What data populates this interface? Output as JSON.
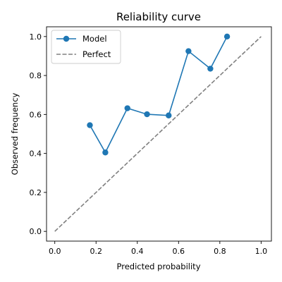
{
  "chart_data": {
    "type": "line",
    "title": "Reliability curve",
    "xlabel": "Predicted probability",
    "ylabel": "Observed frequency",
    "xlim": [
      -0.04,
      1.05
    ],
    "ylim": [
      -0.05,
      1.05
    ],
    "xticks": [
      "0.0",
      "0.2",
      "0.4",
      "0.6",
      "0.8",
      "1.0"
    ],
    "yticks": [
      "0.0",
      "0.2",
      "0.4",
      "0.6",
      "0.8",
      "1.0"
    ],
    "grid": false,
    "legend_position": "top-left",
    "series": [
      {
        "name": "Model",
        "color": "#1f77b4",
        "style": "solid",
        "marker": "circle",
        "x": [
          0.17,
          0.245,
          0.352,
          0.447,
          0.552,
          0.648,
          0.754,
          0.835
        ],
        "y": [
          0.545,
          0.405,
          0.632,
          0.601,
          0.595,
          0.925,
          0.835,
          1.0
        ]
      },
      {
        "name": "Perfect",
        "color": "#808080",
        "style": "dashed",
        "marker": "none",
        "x": [
          0.0,
          1.0
        ],
        "y": [
          0.0,
          1.0
        ]
      }
    ]
  }
}
